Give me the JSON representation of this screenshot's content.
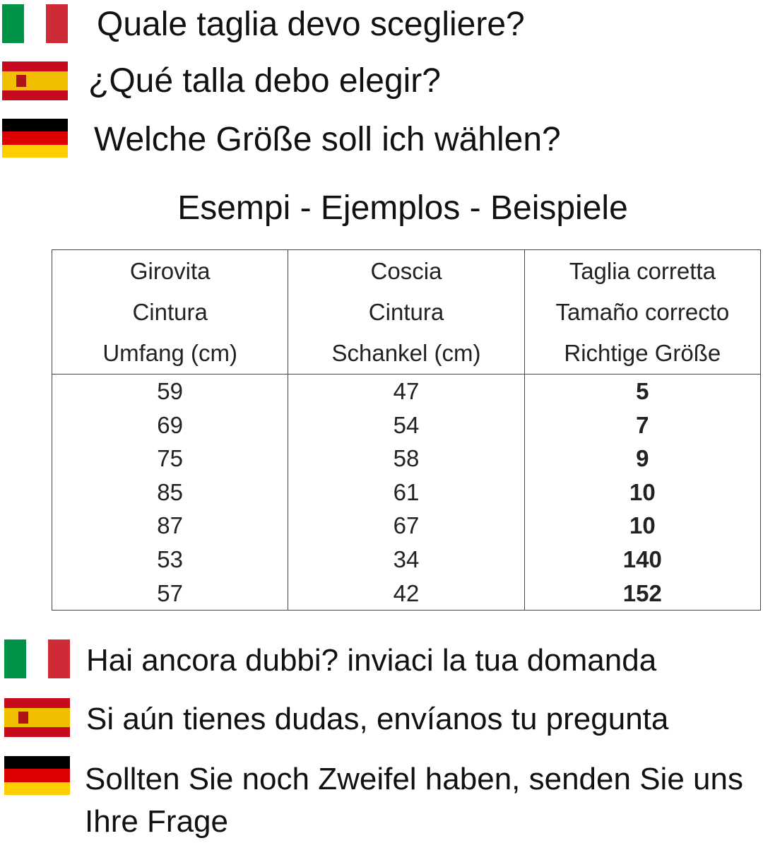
{
  "intro": [
    "Quale taglia devo scegliere?",
    "¿Qué talla debo elegir?",
    "Welche Größe soll ich wählen?"
  ],
  "subtitle": "Esempi - Ejemplos - Beispiele",
  "table": {
    "header": [
      [
        "Girovita",
        "Cintura",
        "Umfang (cm)"
      ],
      [
        "Coscia",
        "Cintura",
        "Schankel (cm)"
      ],
      [
        "Taglia corretta",
        "Tamaño correcto",
        "Richtige Größe"
      ]
    ],
    "rows": [
      [
        59,
        47,
        5
      ],
      [
        69,
        54,
        7
      ],
      [
        75,
        58,
        9
      ],
      [
        85,
        61,
        10
      ],
      [
        87,
        67,
        10
      ],
      [
        53,
        34,
        140
      ],
      [
        57,
        42,
        152
      ]
    ]
  },
  "footer": [
    "Hai ancora dubbi? inviaci la tua domanda",
    "Si aún tienes dudas, envíanos tu pregunta",
    "Sollten Sie noch Zweifel haben, senden Sie uns Ihre Frage"
  ]
}
